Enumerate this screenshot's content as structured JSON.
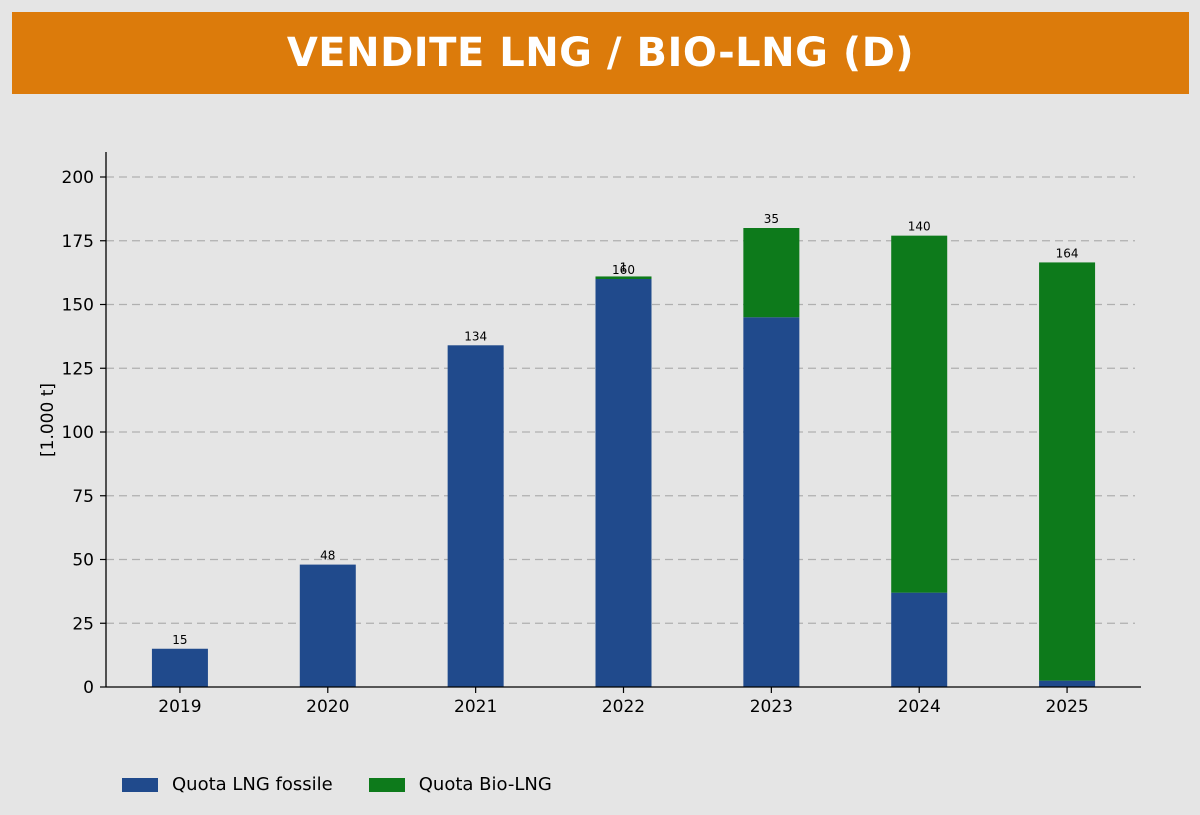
{
  "header": {
    "title": "VENDITE LNG / BIO-LNG (D)"
  },
  "chart_data": {
    "type": "bar",
    "stacked": true,
    "categories": [
      "2019",
      "2020",
      "2021",
      "2022",
      "2023",
      "2024",
      "2025"
    ],
    "series": [
      {
        "name": "Quota LNG fossile",
        "color": "#204a8c",
        "values": [
          15,
          48,
          134,
          160,
          145,
          37,
          2.5
        ],
        "labels": [
          "15",
          "48",
          "134",
          "160",
          "145",
          "37",
          "2.5"
        ]
      },
      {
        "name": "Quota Bio-LNG",
        "color": "#0d7a1b",
        "values": [
          0,
          0,
          0,
          1,
          35,
          140,
          164
        ],
        "labels": [
          "",
          "",
          "",
          "1",
          "35",
          "140",
          "164"
        ]
      }
    ],
    "ylabel": "[1.000 t]",
    "xlabel": "",
    "ylim": [
      0,
      210
    ],
    "yticks": [
      0,
      25,
      50,
      75,
      100,
      125,
      150,
      175,
      200
    ],
    "grid": "horizontal-dashed",
    "legend_position": "bottom-left"
  }
}
